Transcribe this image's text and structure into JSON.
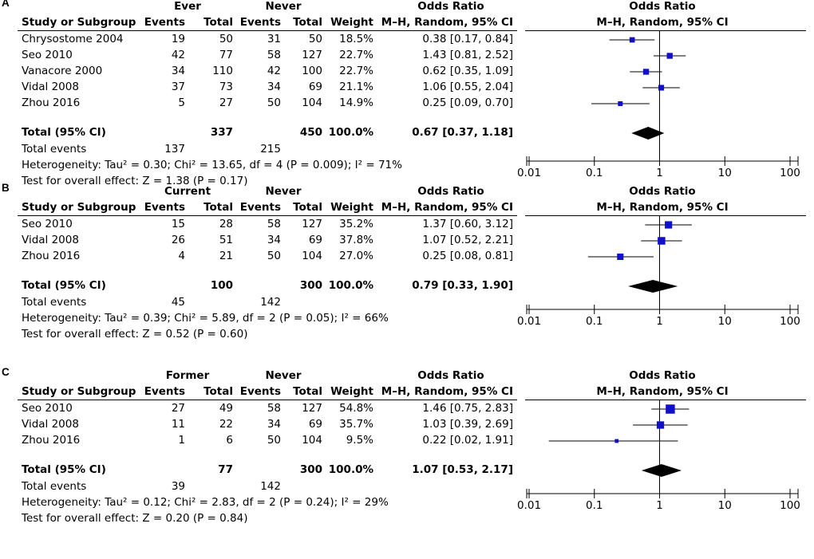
{
  "chart_data": [
    {
      "type": "forest",
      "panel_label": "A",
      "group_label": "Ever",
      "control_label": "Never",
      "col_headers": {
        "study": "Study or Subgroup",
        "events": "Events",
        "total": "Total",
        "weight": "Weight",
        "or_title": "Odds Ratio",
        "or_method": "M–H, Random, 95% CI"
      },
      "studies": [
        {
          "name": "Chrysostome 2004",
          "e1": "19",
          "t1": "50",
          "e2": "31",
          "t2": "50",
          "weight": "18.5%",
          "ci_text": "0.38 [0.17, 0.84]",
          "or": 0.38,
          "lo": 0.17,
          "hi": 0.84,
          "w": 18.5
        },
        {
          "name": "Seo 2010",
          "e1": "42",
          "t1": "77",
          "e2": "58",
          "t2": "127",
          "weight": "22.7%",
          "ci_text": "1.43 [0.81, 2.52]",
          "or": 1.43,
          "lo": 0.81,
          "hi": 2.52,
          "w": 22.7
        },
        {
          "name": "Vanacore 2000",
          "e1": "34",
          "t1": "110",
          "e2": "42",
          "t2": "100",
          "weight": "22.7%",
          "ci_text": "0.62 [0.35, 1.09]",
          "or": 0.62,
          "lo": 0.35,
          "hi": 1.09,
          "w": 22.7
        },
        {
          "name": "Vidal 2008",
          "e1": "37",
          "t1": "73",
          "e2": "34",
          "t2": "69",
          "weight": "21.1%",
          "ci_text": "1.06 [0.55, 2.04]",
          "or": 1.06,
          "lo": 0.55,
          "hi": 2.04,
          "w": 21.1
        },
        {
          "name": "Zhou 2016",
          "e1": "5",
          "t1": "27",
          "e2": "50",
          "t2": "104",
          "weight": "14.9%",
          "ci_text": "0.25 [0.09, 0.70]",
          "or": 0.25,
          "lo": 0.09,
          "hi": 0.7,
          "w": 14.9
        }
      ],
      "total": {
        "label": "Total (95% CI)",
        "t1": "337",
        "t2": "450",
        "weight": "100.0%",
        "ci_text": "0.67 [0.37, 1.18]",
        "or": 0.67,
        "lo": 0.37,
        "hi": 1.18
      },
      "total_events": {
        "label": "Total events",
        "e1": "137",
        "e2": "215"
      },
      "heterogeneity": "Heterogeneity: Tau² = 0.30; Chi² = 13.65, df = 4 (P = 0.009); I² = 71%",
      "overall": "Test for overall effect: Z = 1.38 (P = 0.17)",
      "axis_ticks": [
        {
          "value": 0.01,
          "label": "0.01"
        },
        {
          "value": 0.1,
          "label": "0.1"
        },
        {
          "value": 1,
          "label": "1"
        },
        {
          "value": 10,
          "label": "10"
        },
        {
          "value": 100,
          "label": "100"
        }
      ],
      "xscale": "log",
      "xlim": [
        0.01,
        100
      ]
    },
    {
      "type": "forest",
      "panel_label": "B",
      "group_label": "Current",
      "control_label": "Never",
      "col_headers": {
        "study": "Study or Subgroup",
        "events": "Events",
        "total": "Total",
        "weight": "Weight",
        "or_title": "Odds Ratio",
        "or_method": "M–H, Random, 95% CI"
      },
      "studies": [
        {
          "name": "Seo 2010",
          "e1": "15",
          "t1": "28",
          "e2": "58",
          "t2": "127",
          "weight": "35.2%",
          "ci_text": "1.37 [0.60, 3.12]",
          "or": 1.37,
          "lo": 0.6,
          "hi": 3.12,
          "w": 35.2
        },
        {
          "name": "Vidal 2008",
          "e1": "26",
          "t1": "51",
          "e2": "34",
          "t2": "69",
          "weight": "37.8%",
          "ci_text": "1.07 [0.52, 2.21]",
          "or": 1.07,
          "lo": 0.52,
          "hi": 2.21,
          "w": 37.8
        },
        {
          "name": "Zhou 2016",
          "e1": "4",
          "t1": "21",
          "e2": "50",
          "t2": "104",
          "weight": "27.0%",
          "ci_text": "0.25 [0.08, 0.81]",
          "or": 0.25,
          "lo": 0.08,
          "hi": 0.81,
          "w": 27.0
        }
      ],
      "total": {
        "label": "Total (95% CI)",
        "t1": "100",
        "t2": "300",
        "weight": "100.0%",
        "ci_text": "0.79 [0.33, 1.90]",
        "or": 0.79,
        "lo": 0.33,
        "hi": 1.9
      },
      "total_events": {
        "label": "Total events",
        "e1": "45",
        "e2": "142"
      },
      "heterogeneity": "Heterogeneity: Tau² = 0.39; Chi² = 5.89, df = 2 (P = 0.05); I² = 66%",
      "overall": "Test for overall effect: Z = 0.52 (P = 0.60)",
      "axis_ticks": [
        {
          "value": 0.01,
          "label": "0.01"
        },
        {
          "value": 0.1,
          "label": "0.1"
        },
        {
          "value": 1,
          "label": "1"
        },
        {
          "value": 10,
          "label": "10"
        },
        {
          "value": 100,
          "label": "100"
        }
      ],
      "xscale": "log",
      "xlim": [
        0.01,
        100
      ]
    },
    {
      "type": "forest",
      "panel_label": "C",
      "group_label": "Former",
      "control_label": "Never",
      "col_headers": {
        "study": "Study or Subgroup",
        "events": "Events",
        "total": "Total",
        "weight": "Weight",
        "or_title": "Odds Ratio",
        "or_method": "M–H, Random, 95% CI"
      },
      "studies": [
        {
          "name": "Seo 2010",
          "e1": "27",
          "t1": "49",
          "e2": "58",
          "t2": "127",
          "weight": "54.8%",
          "ci_text": "1.46 [0.75, 2.83]",
          "or": 1.46,
          "lo": 0.75,
          "hi": 2.83,
          "w": 54.8
        },
        {
          "name": "Vidal 2008",
          "e1": "11",
          "t1": "22",
          "e2": "34",
          "t2": "69",
          "weight": "35.7%",
          "ci_text": "1.03 [0.39, 2.69]",
          "or": 1.03,
          "lo": 0.39,
          "hi": 2.69,
          "w": 35.7
        },
        {
          "name": "Zhou 2016",
          "e1": "1",
          "t1": "6",
          "e2": "50",
          "t2": "104",
          "weight": "9.5%",
          "ci_text": "0.22 [0.02, 1.91]",
          "or": 0.22,
          "lo": 0.02,
          "hi": 1.91,
          "w": 9.5
        }
      ],
      "total": {
        "label": "Total (95% CI)",
        "t1": "77",
        "t2": "300",
        "weight": "100.0%",
        "ci_text": "1.07 [0.53, 2.17]",
        "or": 1.07,
        "lo": 0.53,
        "hi": 2.17
      },
      "total_events": {
        "label": "Total events",
        "e1": "39",
        "e2": "142"
      },
      "heterogeneity": "Heterogeneity: Tau² = 0.12; Chi² = 2.83, df = 2 (P = 0.24); I² = 29%",
      "overall": "Test for overall effect: Z = 0.20 (P = 0.84)",
      "axis_ticks": [
        {
          "value": 0.01,
          "label": "0.01"
        },
        {
          "value": 0.1,
          "label": "0.1"
        },
        {
          "value": 1,
          "label": "1"
        },
        {
          "value": 10,
          "label": "10"
        },
        {
          "value": 100,
          "label": "100"
        }
      ],
      "xscale": "log",
      "xlim": [
        0.01,
        100
      ]
    }
  ],
  "colors": {
    "marker": "#1010c8",
    "line": "#000000",
    "diamond": "#000000"
  }
}
